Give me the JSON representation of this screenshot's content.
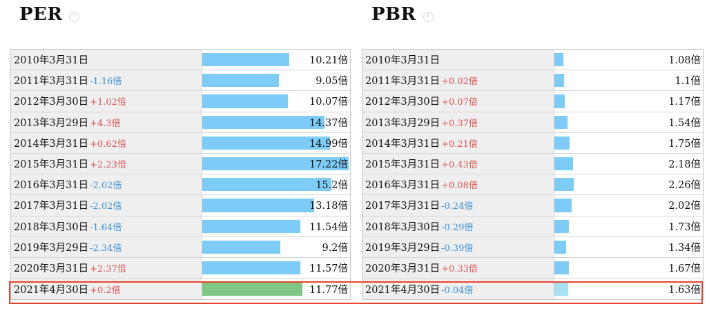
{
  "per": {
    "title": "PER",
    "help": "?",
    "max_value": 17.22,
    "bar_color": "#7dccf7",
    "current_bar_color": "#80c785",
    "rows": [
      {
        "date": "2010年3月31日",
        "delta": "",
        "dir": "",
        "value": "10.21倍",
        "num": 10.21
      },
      {
        "date": "2011年3月31日",
        "delta": "-1.16倍",
        "dir": "down",
        "value": "9.05倍",
        "num": 9.05
      },
      {
        "date": "2012年3月30日",
        "delta": "+1.02倍",
        "dir": "up",
        "value": "10.07倍",
        "num": 10.07
      },
      {
        "date": "2013年3月29日",
        "delta": "+4.3倍",
        "dir": "up",
        "value": "14.37倍",
        "num": 14.37
      },
      {
        "date": "2014年3月31日",
        "delta": "+0.62倍",
        "dir": "up",
        "value": "14.99倍",
        "num": 14.99
      },
      {
        "date": "2015年3月31日",
        "delta": "+2.23倍",
        "dir": "up",
        "value": "17.22倍",
        "num": 17.22
      },
      {
        "date": "2016年3月31日",
        "delta": "-2.02倍",
        "dir": "down",
        "value": "15.2倍",
        "num": 15.2
      },
      {
        "date": "2017年3月31日",
        "delta": "-2.02倍",
        "dir": "down",
        "value": "13.18倍",
        "num": 13.18
      },
      {
        "date": "2018年3月30日",
        "delta": "-1.64倍",
        "dir": "down",
        "value": "11.54倍",
        "num": 11.54
      },
      {
        "date": "2019年3月29日",
        "delta": "-2.34倍",
        "dir": "down",
        "value": "9.2倍",
        "num": 9.2
      },
      {
        "date": "2020年3月31日",
        "delta": "+2.37倍",
        "dir": "up",
        "value": "11.57倍",
        "num": 11.57
      },
      {
        "date": "2021年4月30日",
        "delta": "+0.2倍",
        "dir": "up",
        "value": "11.77倍",
        "num": 11.77,
        "current": true
      }
    ]
  },
  "pbr": {
    "title": "PBR",
    "help": "?",
    "max_value": 17.22,
    "bar_color": "#7dccf7",
    "current_bar_color": "#a6e0f2",
    "rows": [
      {
        "date": "2010年3月31日",
        "delta": "",
        "dir": "",
        "value": "1.08倍",
        "num": 1.08
      },
      {
        "date": "2011年3月31日",
        "delta": "+0.02倍",
        "dir": "up",
        "value": "1.1倍",
        "num": 1.1
      },
      {
        "date": "2012年3月30日",
        "delta": "+0.07倍",
        "dir": "up",
        "value": "1.17倍",
        "num": 1.17
      },
      {
        "date": "2013年3月29日",
        "delta": "+0.37倍",
        "dir": "up",
        "value": "1.54倍",
        "num": 1.54
      },
      {
        "date": "2014年3月31日",
        "delta": "+0.21倍",
        "dir": "up",
        "value": "1.75倍",
        "num": 1.75
      },
      {
        "date": "2015年3月31日",
        "delta": "+0.43倍",
        "dir": "up",
        "value": "2.18倍",
        "num": 2.18
      },
      {
        "date": "2016年3月31日",
        "delta": "+0.08倍",
        "dir": "up",
        "value": "2.26倍",
        "num": 2.26
      },
      {
        "date": "2017年3月31日",
        "delta": "-0.24倍",
        "dir": "down",
        "value": "2.02倍",
        "num": 2.02
      },
      {
        "date": "2018年3月30日",
        "delta": "-0.29倍",
        "dir": "down",
        "value": "1.73倍",
        "num": 1.73
      },
      {
        "date": "2019年3月29日",
        "delta": "-0.39倍",
        "dir": "down",
        "value": "1.34倍",
        "num": 1.34
      },
      {
        "date": "2020年3月31日",
        "delta": "+0.33倍",
        "dir": "up",
        "value": "1.67倍",
        "num": 1.67
      },
      {
        "date": "2021年4月30日",
        "delta": "-0.04倍",
        "dir": "down",
        "value": "1.63倍",
        "num": 1.63,
        "current": true
      }
    ]
  },
  "highlight_color": "#e8442e"
}
